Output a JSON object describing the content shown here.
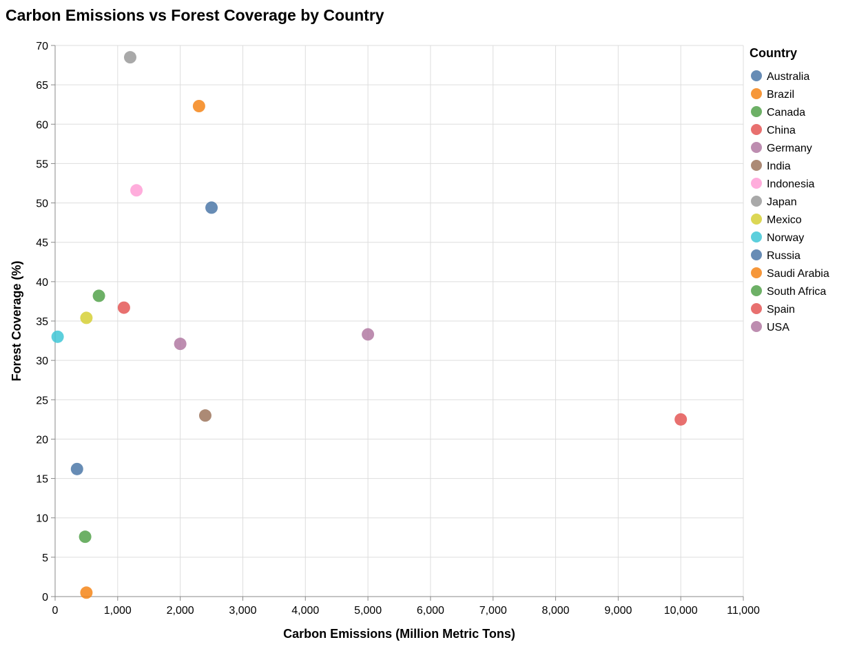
{
  "chart_data": {
    "type": "scatter",
    "title": "Carbon Emissions vs Forest Coverage by Country",
    "xlabel": "Carbon Emissions (Million Metric Tons)",
    "ylabel": "Forest Coverage (%)",
    "xlim": [
      0,
      11000
    ],
    "ylim": [
      0,
      70
    ],
    "x_ticks": [
      0,
      1000,
      2000,
      3000,
      4000,
      5000,
      6000,
      7000,
      8000,
      9000,
      10000,
      11000
    ],
    "x_tick_labels": [
      "0",
      "1,000",
      "2,000",
      "3,000",
      "4,000",
      "5,000",
      "6,000",
      "7,000",
      "8,000",
      "9,000",
      "10,000",
      "11,000"
    ],
    "y_ticks": [
      0,
      5,
      10,
      15,
      20,
      25,
      30,
      35,
      40,
      45,
      50,
      55,
      60,
      65,
      70
    ],
    "y_tick_labels": [
      "0",
      "5",
      "10",
      "15",
      "20",
      "25",
      "30",
      "35",
      "40",
      "45",
      "50",
      "55",
      "60",
      "65",
      "70"
    ],
    "grid": true,
    "legend_title": "Country",
    "legend_placement": "right",
    "series": [
      {
        "name": "Australia",
        "color": "#4c78a8",
        "x": 350,
        "y": 16.2
      },
      {
        "name": "Brazil",
        "color": "#f58518",
        "x": 2300,
        "y": 62.3
      },
      {
        "name": "Canada",
        "color": "#54a24b",
        "x": 700,
        "y": 38.2
      },
      {
        "name": "China",
        "color": "#e45756",
        "x": 10000,
        "y": 22.5
      },
      {
        "name": "Germany",
        "color": "#b279a2",
        "x": 2000,
        "y": 32.1
      },
      {
        "name": "India",
        "color": "#9d755d",
        "x": 2400,
        "y": 23.0
      },
      {
        "name": "Indonesia",
        "color": "#ff9fd6",
        "x": 1300,
        "y": 51.6
      },
      {
        "name": "Japan",
        "color": "#9a9a9a",
        "x": 1200,
        "y": 68.5
      },
      {
        "name": "Mexico",
        "color": "#d6d036",
        "x": 500,
        "y": 35.4
      },
      {
        "name": "Norway",
        "color": "#3fc7d6",
        "x": 40,
        "y": 33.0
      },
      {
        "name": "Russia",
        "color": "#4c78a8",
        "x": 2500,
        "y": 49.4
      },
      {
        "name": "Saudi Arabia",
        "color": "#f58518",
        "x": 500,
        "y": 0.5
      },
      {
        "name": "South Africa",
        "color": "#54a24b",
        "x": 480,
        "y": 7.6
      },
      {
        "name": "Spain",
        "color": "#e45756",
        "x": 1100,
        "y": 36.7
      },
      {
        "name": "USA",
        "color": "#b279a2",
        "x": 5000,
        "y": 33.3
      }
    ]
  }
}
